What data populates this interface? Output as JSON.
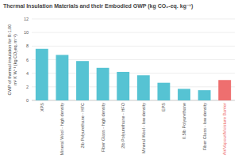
{
  "chart_data": {
    "type": "bar",
    "title": "Thermal Insulation Materials and their Embodied GWP (kg CO₂-eq. kg⁻¹)",
    "ylabel": "GWP of thermal insulation for R-1.00 m² K W⁻¹ (kg CO₂eq. m⁻²)",
    "categories": [
      "XPS",
      "Mineral Wool - high density",
      "2lb Polyurethane - HFC",
      "Fiber Glass - high density",
      "2lb Polyurethane - HFO",
      "Mineral Wool - low density",
      "EPS",
      "0.5lb Polyurethane",
      "Fiber Glass - low density",
      "Air/Vapour/Moisture Barrier"
    ],
    "values": [
      7.6,
      6.7,
      5.8,
      4.8,
      4.2,
      3.7,
      2.6,
      1.7,
      1.5,
      3.0
    ],
    "colors": [
      "#56c3d3",
      "#56c3d3",
      "#56c3d3",
      "#56c3d3",
      "#56c3d3",
      "#56c3d3",
      "#56c3d3",
      "#56c3d3",
      "#56c3d3",
      "#ee6f6f"
    ],
    "ylim": [
      0,
      12
    ],
    "yticks": [
      0,
      2,
      4,
      6,
      8,
      10,
      12
    ],
    "grid": true
  }
}
